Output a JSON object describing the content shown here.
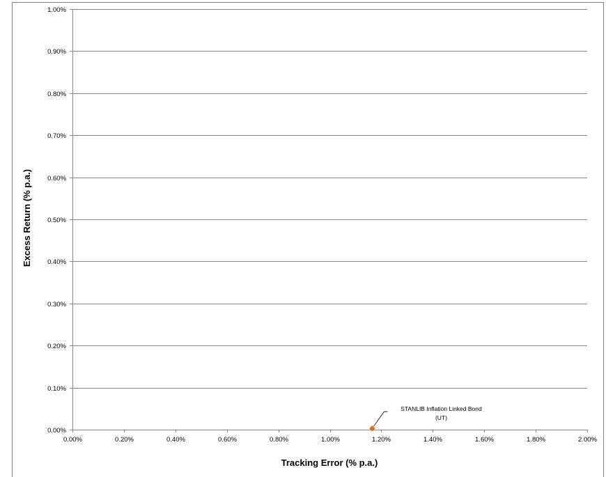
{
  "chart_data": {
    "type": "scatter",
    "xlabel": "Tracking Error (% p.a.)",
    "ylabel": "Excess Return (% p.a.)",
    "xlim": [
      0,
      2.0
    ],
    "ylim": [
      0,
      1.0
    ],
    "x_ticks": [
      0,
      0.2,
      0.4,
      0.6,
      0.8,
      1.0,
      1.2,
      1.4,
      1.6,
      1.8,
      2.0
    ],
    "y_ticks": [
      0,
      0.1,
      0.2,
      0.3,
      0.4,
      0.5,
      0.6,
      0.7,
      0.8,
      0.9,
      1.0
    ],
    "x_tick_labels": [
      "0.00%",
      "0.20%",
      "0.40%",
      "0.60%",
      "0.80%",
      "1.00%",
      "1.20%",
      "1.40%",
      "1.60%",
      "1.80%",
      "2.00%"
    ],
    "y_tick_labels": [
      "0.00%",
      "0.10%",
      "0.20%",
      "0.30%",
      "0.40%",
      "0.50%",
      "0.60%",
      "0.70%",
      "0.80%",
      "0.90%",
      "1.00%"
    ],
    "grid": "horizontal",
    "legend": "none",
    "marker_color": "#E46C0A",
    "points": [
      {
        "label_lines": [
          "STANLIB Inflation Linked Bond",
          "(UT)"
        ],
        "x": 1.165,
        "y": 0.003
      }
    ]
  }
}
